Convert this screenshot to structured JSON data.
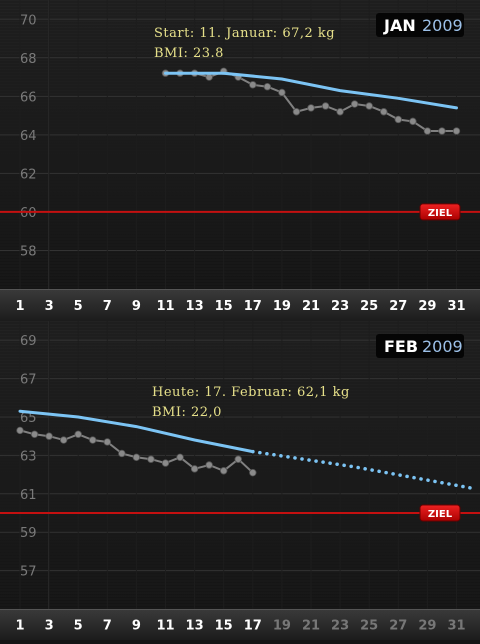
{
  "chart_data": [
    {
      "type": "line",
      "month_label": "JAN",
      "year_label": "2009",
      "annotation": {
        "start_line": "Start: 11. Januar: 67,2 kg",
        "bmi_line": "BMI: 23.8"
      },
      "y_ticks": [
        "70",
        "68",
        "66",
        "64",
        "62",
        "60",
        "58"
      ],
      "x_ticks": [
        "1",
        "3",
        "5",
        "7",
        "9",
        "11",
        "13",
        "15",
        "17",
        "19",
        "21",
        "23",
        "25",
        "27",
        "29",
        "31"
      ],
      "ylim": [
        56,
        71
      ],
      "xlim": [
        0,
        32
      ],
      "goal": {
        "label": "ZIEL",
        "value": 60
      },
      "series": [
        {
          "role": "measurements",
          "x": [
            11,
            12,
            13,
            14,
            15,
            16,
            17,
            18,
            19,
            20,
            21,
            22,
            23,
            24,
            25,
            26,
            27,
            28,
            29,
            30,
            31
          ],
          "values": [
            67.2,
            67.2,
            67.2,
            67.0,
            67.3,
            67.0,
            66.6,
            66.5,
            66.2,
            65.2,
            65.4,
            65.5,
            65.2,
            65.6,
            65.5,
            65.2,
            64.8,
            64.7,
            64.2,
            64.2,
            64.2
          ]
        },
        {
          "role": "trend",
          "x": [
            11,
            15,
            19,
            23,
            27,
            31
          ],
          "values": [
            67.2,
            67.2,
            66.9,
            66.3,
            65.9,
            65.4
          ]
        }
      ]
    },
    {
      "type": "line",
      "month_label": "FEB",
      "year_label": "2009",
      "annotation": {
        "start_line": "Heute: 17. Februar: 62,1 kg",
        "bmi_line": "BMI: 22,0"
      },
      "y_ticks": [
        "69",
        "67",
        "65",
        "63",
        "61",
        "59",
        "57"
      ],
      "x_ticks": [
        "1",
        "3",
        "5",
        "7",
        "9",
        "11",
        "13",
        "15",
        "17",
        "19",
        "21",
        "23",
        "25",
        "27",
        "29",
        "31"
      ],
      "ylim": [
        55,
        70
      ],
      "xlim": [
        0,
        32
      ],
      "goal": {
        "label": "ZIEL",
        "value": 60
      },
      "series": [
        {
          "role": "measurements",
          "x": [
            1,
            2,
            3,
            4,
            5,
            6,
            7,
            8,
            9,
            10,
            11,
            12,
            13,
            14,
            15,
            16,
            17
          ],
          "values": [
            64.3,
            64.1,
            64.0,
            63.8,
            64.1,
            63.8,
            63.7,
            63.1,
            62.9,
            62.8,
            62.6,
            62.9,
            62.3,
            62.5,
            62.2,
            62.8,
            62.1
          ]
        },
        {
          "role": "trend",
          "x": [
            1,
            5,
            9,
            13,
            17
          ],
          "values": [
            65.3,
            65.0,
            64.5,
            63.8,
            63.2
          ]
        },
        {
          "role": "projection",
          "x": [
            17,
            24,
            32
          ],
          "values": [
            63.2,
            62.4,
            61.3
          ]
        }
      ]
    }
  ]
}
